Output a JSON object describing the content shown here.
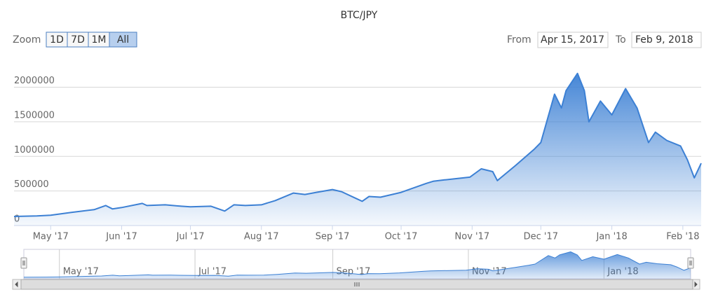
{
  "chart_data": {
    "type": "area",
    "title": "BTC/JPY",
    "range_selector": {
      "label": "Zoom",
      "buttons": [
        "1D",
        "7D",
        "1M",
        "All"
      ],
      "selected": 3,
      "from_label": "From",
      "from": "Apr 15, 2017",
      "to_label": "To",
      "to": "Feb 9, 2018"
    },
    "series": [
      {
        "name": "BTC/JPY",
        "color": "#3c80d4"
      }
    ],
    "x": [
      "2017-04-15",
      "2017-04-25",
      "2017-05-01",
      "2017-05-10",
      "2017-05-20",
      "2017-05-25",
      "2017-05-28",
      "2017-06-01",
      "2017-06-10",
      "2017-06-12",
      "2017-06-20",
      "2017-06-27",
      "2017-07-01",
      "2017-07-10",
      "2017-07-16",
      "2017-07-20",
      "2017-07-25",
      "2017-08-01",
      "2017-08-07",
      "2017-08-15",
      "2017-08-20",
      "2017-08-25",
      "2017-09-01",
      "2017-09-05",
      "2017-09-14",
      "2017-09-17",
      "2017-09-22",
      "2017-10-01",
      "2017-10-12",
      "2017-10-15",
      "2017-10-20",
      "2017-10-31",
      "2017-11-05",
      "2017-11-10",
      "2017-11-12",
      "2017-11-20",
      "2017-11-28",
      "2017-12-01",
      "2017-12-07",
      "2017-12-10",
      "2017-12-12",
      "2017-12-17",
      "2017-12-20",
      "2017-12-22",
      "2017-12-27",
      "2018-01-01",
      "2018-01-07",
      "2018-01-12",
      "2018-01-17",
      "2018-01-20",
      "2018-01-25",
      "2018-01-31",
      "2018-02-03",
      "2018-02-06",
      "2018-02-09"
    ],
    "values": [
      132000,
      140000,
      150000,
      190000,
      230000,
      290000,
      240000,
      260000,
      320000,
      290000,
      300000,
      280000,
      270000,
      280000,
      210000,
      300000,
      290000,
      300000,
      360000,
      470000,
      450000,
      480000,
      520000,
      490000,
      350000,
      420000,
      410000,
      480000,
      610000,
      640000,
      660000,
      700000,
      820000,
      780000,
      650000,
      870000,
      1100000,
      1200000,
      1900000,
      1700000,
      1950000,
      2200000,
      1950000,
      1500000,
      1800000,
      1600000,
      1980000,
      1700000,
      1200000,
      1350000,
      1230000,
      1150000,
      950000,
      690000,
      900000
    ],
    "xlim": [
      "2017-04-15",
      "2018-02-09"
    ],
    "xticks": [
      {
        "value": "2017-05-01",
        "label": "May '17"
      },
      {
        "value": "2017-06-01",
        "label": "Jun '17"
      },
      {
        "value": "2017-07-01",
        "label": "Jul '17"
      },
      {
        "value": "2017-08-01",
        "label": "Aug '17"
      },
      {
        "value": "2017-09-01",
        "label": "Sep '17"
      },
      {
        "value": "2017-10-01",
        "label": "Oct '17"
      },
      {
        "value": "2017-11-01",
        "label": "Nov '17"
      },
      {
        "value": "2017-12-01",
        "label": "Dec '17"
      },
      {
        "value": "2018-01-01",
        "label": "Jan '18"
      },
      {
        "value": "2018-02-01",
        "label": "Feb '18"
      }
    ],
    "ylim": [
      0,
      2400000
    ],
    "yticks": [
      0,
      500000,
      1000000,
      1500000,
      2000000
    ],
    "grid": true,
    "navigator_xticks": [
      {
        "value": "2017-05-01",
        "label": "May '17"
      },
      {
        "value": "2017-07-01",
        "label": "Jul '17"
      },
      {
        "value": "2017-09-01",
        "label": "Sep '17"
      },
      {
        "value": "2017-11-01",
        "label": "Nov '17"
      },
      {
        "value": "2018-01-01",
        "label": "Jan '18"
      }
    ]
  }
}
